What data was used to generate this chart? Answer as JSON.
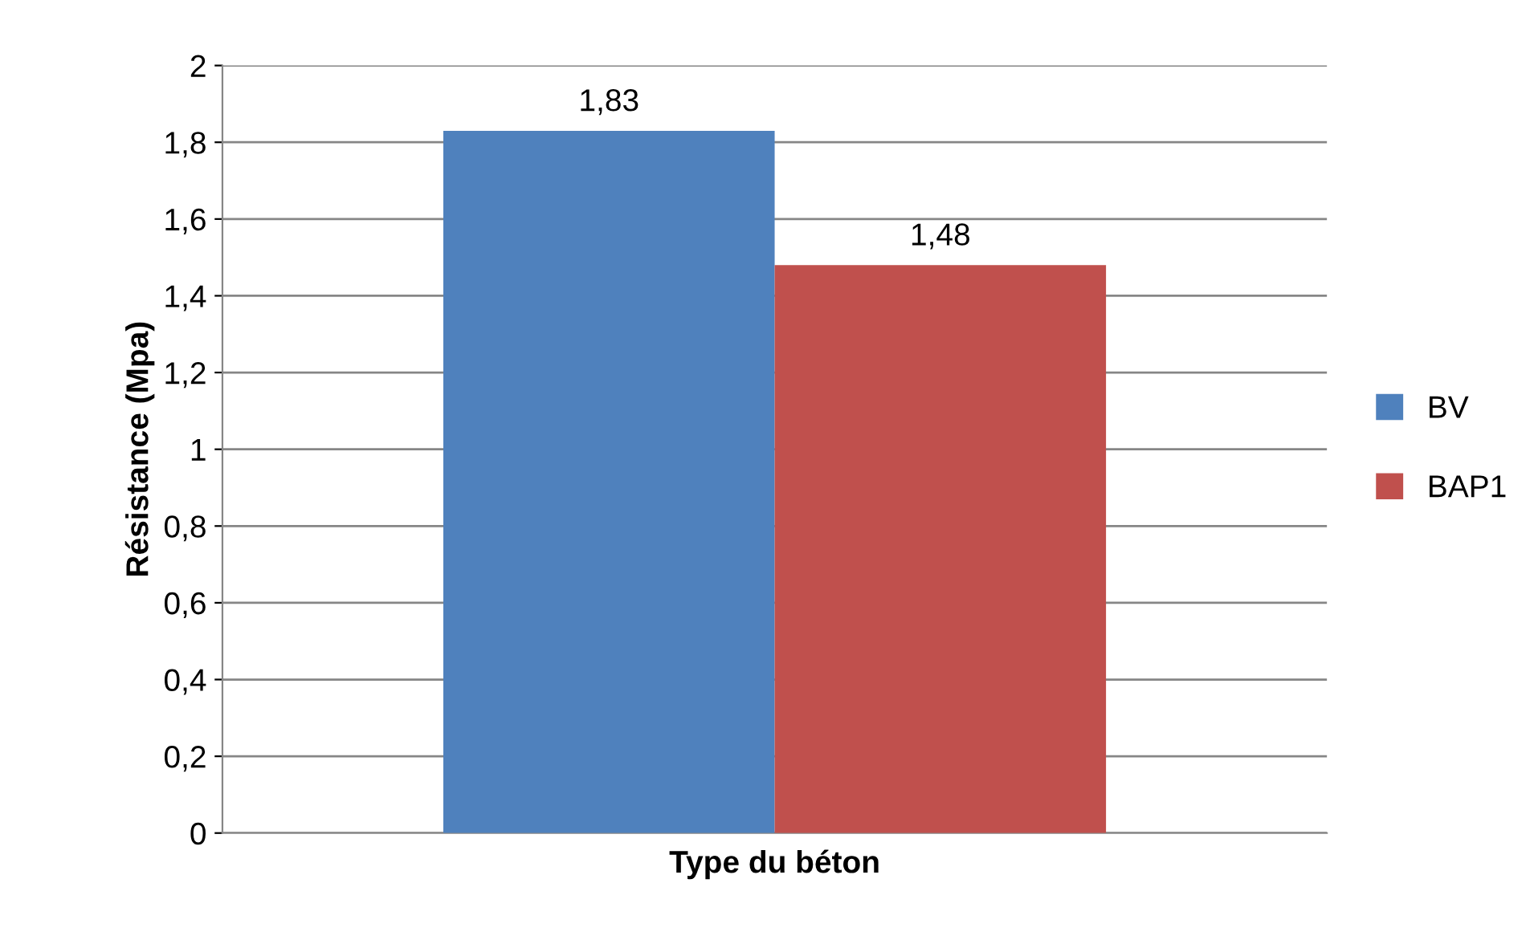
{
  "chart_data": {
    "type": "bar",
    "xlabel": "Type du béton",
    "ylabel": "Résistance (Mpa)",
    "categories": [
      null
    ],
    "series": [
      {
        "name": "BV",
        "color": "#4f81bd",
        "values": [
          1.83
        ],
        "value_labels": [
          "1,83"
        ]
      },
      {
        "name": "BAP1",
        "color": "#c0504d",
        "values": [
          1.48
        ],
        "value_labels": [
          "1,48"
        ]
      }
    ],
    "ylim": [
      0,
      2
    ],
    "yticks": [
      0,
      {
        "value": 0.2,
        "label": "0,2"
      },
      {
        "value": 0.4,
        "label": "0,4"
      },
      {
        "value": 0.6,
        "label": "0,6"
      },
      {
        "value": 0.8,
        "label": "0,8"
      },
      1,
      {
        "value": 1.2,
        "label": "1,2"
      },
      {
        "value": 1.4,
        "label": "1,4"
      },
      {
        "value": 1.6,
        "label": "1,6"
      },
      {
        "value": 1.8,
        "label": "1,8"
      },
      2
    ],
    "grid": "y",
    "legend": "right"
  }
}
